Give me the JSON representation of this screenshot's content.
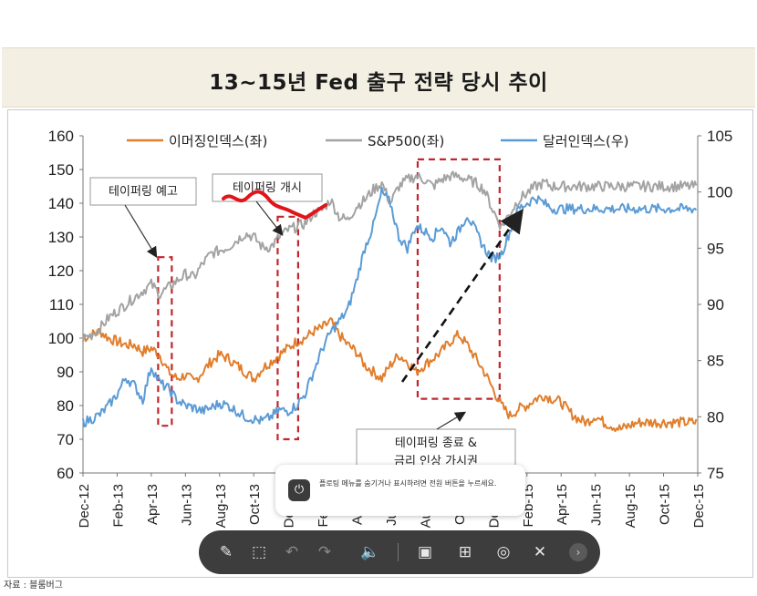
{
  "page": {
    "title": "13~15년 Fed 출구 전략 당시 추이",
    "source": "자료 : 블룸버그"
  },
  "toast": {
    "text": "플로팅 메뉴를 숨기거나 표시하려면 전원 버튼을 누르세요."
  },
  "toolbar": {
    "buttons": [
      {
        "name": "edit-icon",
        "glyph": "✎"
      },
      {
        "name": "crop-icon",
        "glyph": "⬚"
      },
      {
        "name": "undo-icon",
        "glyph": "↶"
      },
      {
        "name": "redo-icon",
        "glyph": "↷"
      },
      {
        "name": "volume-icon",
        "glyph": "🔈"
      },
      {
        "name": "screen-record-icon",
        "glyph": "▣"
      },
      {
        "name": "layout-icon",
        "glyph": "⊞"
      },
      {
        "name": "capture-icon",
        "glyph": "◎"
      },
      {
        "name": "close-icon",
        "glyph": "✕"
      }
    ]
  },
  "chart_data": {
    "type": "line",
    "x_ticks": [
      "Dec-12",
      "Feb-13",
      "Apr-13",
      "Jun-13",
      "Aug-13",
      "Oct-13",
      "Dec-13",
      "Feb-14",
      "Apr-14",
      "Jun-14",
      "Aug-14",
      "Oct-14",
      "Dec-14",
      "Feb-15",
      "Apr-15",
      "Jun-15",
      "Aug-15",
      "Oct-15",
      "Dec-15"
    ],
    "y_left": {
      "min": 60,
      "max": 160,
      "ticks": [
        60,
        70,
        80,
        90,
        100,
        110,
        120,
        130,
        140,
        150,
        160
      ]
    },
    "y_right": {
      "min": 75,
      "max": 105,
      "ticks": [
        75,
        80,
        85,
        90,
        95,
        100,
        105
      ]
    },
    "legend": [
      "이머징인덱스(좌)",
      "S&P500(좌)",
      "달러인덱스(우)"
    ],
    "colors": {
      "em": "#e07e2c",
      "sp": "#a3a3a3",
      "dxy": "#5b9bd5",
      "annot": "#c0262c",
      "scribble": "#e0141a"
    },
    "series": [
      {
        "name": "이머징인덱스(좌)",
        "axis": "left",
        "color": "#e07e2c",
        "t": [
          0,
          0.5,
          1,
          1.5,
          2,
          2.5,
          3,
          3.5,
          4,
          4.5,
          5,
          5.5,
          6,
          6.5,
          7,
          7.5,
          8,
          8.5,
          9,
          9.5,
          10,
          10.5,
          11,
          11.5,
          12,
          12.5,
          13,
          13.5,
          14,
          14.5,
          15,
          15.5,
          16,
          16.5,
          17,
          17.5,
          18,
          18.5,
          19,
          19.5,
          20,
          20.5,
          21,
          21.5,
          22,
          22.5,
          23,
          23.5,
          24,
          24.5,
          25,
          25.5,
          26,
          26.5,
          27,
          27.5,
          28,
          28.5,
          29,
          29.5,
          30,
          30.5,
          31,
          31.5,
          32,
          32.5,
          33,
          33.5,
          34,
          34.5,
          35,
          35.5,
          36
        ],
        "values": [
          100,
          101,
          102,
          100,
          99,
          98,
          98,
          96,
          97,
          95,
          90,
          88,
          89,
          87,
          90,
          93,
          95,
          94,
          92,
          90,
          88,
          91,
          93,
          95,
          97,
          99,
          100,
          102,
          103,
          105,
          101,
          98,
          96,
          92,
          90,
          88,
          92,
          95,
          93,
          90,
          92,
          94,
          96,
          99,
          101,
          98,
          94,
          90,
          85,
          80,
          77,
          79,
          80,
          82,
          83,
          82,
          81,
          78,
          76,
          75,
          77,
          75,
          74,
          73,
          74,
          75,
          75,
          75,
          75,
          75,
          75,
          75,
          75
        ]
      },
      {
        "name": "S&P500(좌)",
        "axis": "left",
        "color": "#a3a3a3",
        "t": [
          0,
          0.5,
          1,
          1.5,
          2,
          2.5,
          3,
          3.5,
          4,
          4.5,
          5,
          5.5,
          6,
          6.5,
          7,
          7.5,
          8,
          8.5,
          9,
          9.5,
          10,
          10.5,
          11,
          11.5,
          12,
          12.5,
          13,
          13.5,
          14,
          14.5,
          15,
          15.5,
          16,
          16.5,
          17,
          17.5,
          18,
          18.5,
          19,
          19.5,
          20,
          20.5,
          21,
          21.5,
          22,
          22.5,
          23,
          23.5,
          24,
          24.5,
          25,
          25.5,
          26,
          26.5,
          27,
          27.5,
          28,
          28.5,
          29,
          29.5,
          30,
          30.5,
          31,
          31.5,
          32,
          32.5,
          33,
          33.5,
          34,
          34.5,
          35,
          35.5,
          36
        ],
        "values": [
          100,
          101,
          103,
          106,
          108,
          110,
          112,
          114,
          116,
          113,
          115,
          117,
          119,
          118,
          122,
          125,
          126,
          127,
          129,
          131,
          130,
          127,
          127,
          130,
          132,
          133,
          134,
          137,
          138,
          141,
          136,
          135,
          139,
          141,
          144,
          146,
          140,
          145,
          147,
          148,
          147,
          145,
          147,
          148,
          148,
          147,
          146,
          144,
          138,
          133,
          137,
          141,
          143,
          145,
          146,
          145,
          145,
          145,
          145,
          145,
          145,
          145,
          145,
          145,
          145,
          145,
          145,
          145,
          145,
          145,
          145,
          145,
          145
        ]
      },
      {
        "name": "달러인덱스(우)",
        "axis": "right",
        "color": "#5b9bd5",
        "t": [
          0,
          0.5,
          1,
          1.5,
          2,
          2.5,
          3,
          3.5,
          4,
          4.5,
          5,
          5.5,
          6,
          6.5,
          7,
          7.5,
          8,
          8.5,
          9,
          9.5,
          10,
          10.5,
          11,
          11.5,
          12,
          12.5,
          13,
          13.5,
          14,
          14.5,
          15,
          15.5,
          16,
          16.5,
          17,
          17.5,
          18,
          18.5,
          19,
          19.5,
          20,
          20.5,
          21,
          21.5,
          22,
          22.5,
          23,
          23.5,
          24,
          24.5,
          25,
          25.5,
          26,
          26.5,
          27,
          27.5,
          28,
          28.5,
          29,
          29.5,
          30,
          30.5,
          31,
          31.5,
          32,
          32.5,
          33,
          33.5,
          34,
          34.5,
          35,
          35.5,
          36
        ],
        "values": [
          79.5,
          79.8,
          80.2,
          81,
          82,
          83.5,
          82.8,
          81.5,
          84.5,
          83,
          82.5,
          81.5,
          81,
          80.8,
          80.5,
          80.8,
          81.2,
          81,
          80.5,
          80,
          79.8,
          79.6,
          80,
          80.6,
          80.5,
          81,
          82,
          84,
          86,
          87.5,
          88.5,
          89.5,
          92,
          95,
          97,
          100,
          99,
          96,
          95,
          97,
          96.5,
          96,
          97,
          95.5,
          96.5,
          98,
          96.5,
          95,
          94,
          94.5,
          96.5,
          98.5,
          99,
          99.5,
          99,
          98.5,
          98.5,
          98.5,
          98.5,
          98.5,
          98.5,
          98.5,
          98.5,
          98.5,
          98.5,
          98.5,
          98.5,
          98.5,
          98.5,
          98.5,
          98.5,
          98.5,
          98.5
        ]
      }
    ],
    "annotations": {
      "taper_notice": "테이퍼링 예고",
      "taper_start": "테이퍼링 개시",
      "taper_end_1": "테이퍼링 종료 &",
      "taper_end_2": "금리 인상 가시권"
    },
    "highlight_ranges": [
      {
        "t0": 4.4,
        "t1": 5.2,
        "y0": 74,
        "y1": 124
      },
      {
        "t0": 11.4,
        "t1": 12.6,
        "y0": 70,
        "y1": 136
      },
      {
        "t0": 19.6,
        "t1": 24.4,
        "y0": 82,
        "y1": 153
      }
    ]
  }
}
